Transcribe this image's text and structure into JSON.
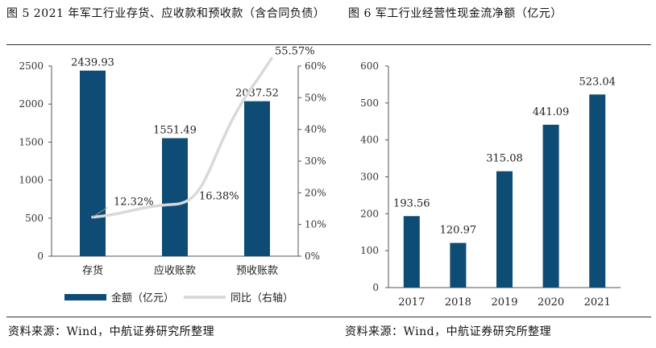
{
  "figure5": {
    "title": "图 5 2021 年军工行业存货、应收款和预收款（含合同负债）",
    "source": "资料来源：Wind，中航证券研究所整理"
  },
  "figure6": {
    "title": "图 6 军工行业经营性现金流净额（亿元）",
    "source": "资料来源：Wind，中航证券研究所整理"
  },
  "colors": {
    "bar": "#0f4c75",
    "line": "#d9d9d9",
    "rule": "#333333"
  },
  "chart_data": [
    {
      "type": "bar",
      "categories": [
        "存货",
        "应收账款",
        "预收账款"
      ],
      "series": [
        {
          "name": "金额（亿元）",
          "values": [
            2439.93,
            1551.49,
            2037.52
          ],
          "labels": [
            "2439.93",
            "1551.49",
            "2037.52"
          ]
        },
        {
          "name": "同比（右轴）",
          "type": "line",
          "axis": "right",
          "values": [
            12.32,
            16.38,
            55.57
          ],
          "labels": [
            "12.32%",
            "16.38%",
            "55.57%"
          ]
        }
      ],
      "ylim": [
        0,
        2500
      ],
      "yticks": [
        "0",
        "500",
        "1000",
        "1500",
        "2000",
        "2500"
      ],
      "y2lim": [
        0,
        60
      ],
      "y2ticks": [
        "0%",
        "10%",
        "20%",
        "30%",
        "40%",
        "50%",
        "60%"
      ],
      "legend": "bottom"
    },
    {
      "type": "bar",
      "categories": [
        "2017",
        "2018",
        "2019",
        "2020",
        "2021"
      ],
      "values": [
        193.56,
        120.97,
        315.08,
        441.09,
        523.04
      ],
      "labels": [
        "193.56",
        "120.97",
        "315.08",
        "441.09",
        "523.04"
      ],
      "ylim": [
        0,
        600
      ],
      "yticks": [
        "0",
        "100",
        "200",
        "300",
        "400",
        "500",
        "600"
      ]
    }
  ]
}
